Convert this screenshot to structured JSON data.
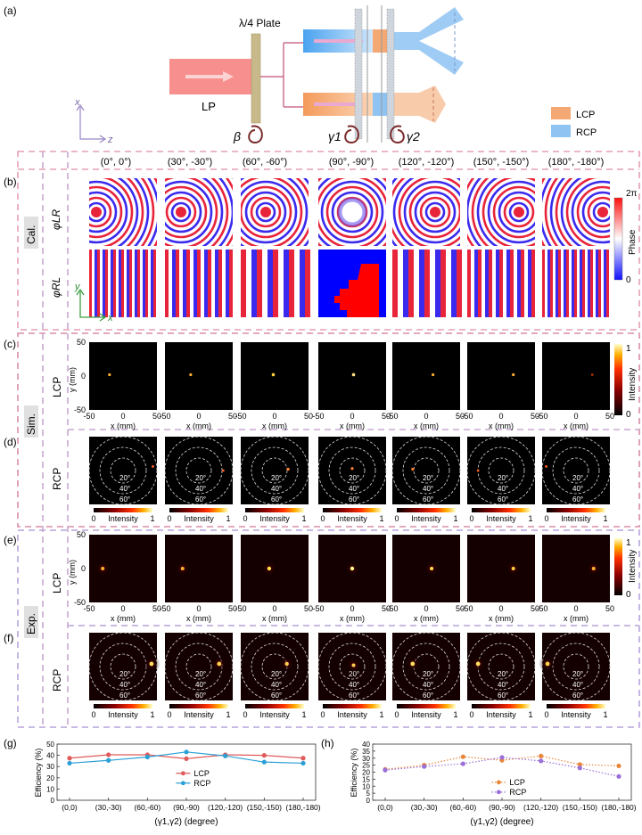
{
  "panel_labels": {
    "a": "(a)",
    "b": "(b)",
    "c": "(c)",
    "d": "(d)",
    "e": "(e)",
    "f": "(f)",
    "g": "(g)",
    "h": "(h)"
  },
  "setup": {
    "plate_label": "λ/4 Plate",
    "lp_label": "LP",
    "beta_label": "β",
    "gamma1_label": "γ1",
    "gamma2_label": "γ2",
    "axis_x": "x",
    "axis_z": "z",
    "legend": [
      {
        "label": "LCP",
        "color": "#f4a873"
      },
      {
        "label": "RCP",
        "color": "#8ec3f2"
      }
    ]
  },
  "angle_pairs": [
    "(0°, 0°)",
    "(30°, -30°)",
    "(60°, -60°)",
    "(90°, -90°)",
    "(120°, -120°)",
    "(150°, -150°)",
    "(180°, -180°)"
  ],
  "row_labels": {
    "phi_lr": "φLR",
    "phi_rl": "φRL",
    "lcp": "LCP",
    "rcp": "RCP"
  },
  "group_labels": {
    "cal": "Cal.",
    "sim": "Sim.",
    "exp": "Exp."
  },
  "phase_colorbar": {
    "title": "Phase",
    "top": "2π",
    "bottom": "0"
  },
  "intensity_colorbar": {
    "title": "Intensity",
    "top": "1",
    "bottom": "0",
    "low": "0",
    "high": "1"
  },
  "map_axes": {
    "xlabel": "x (mm)",
    "ylabel": "y (mm)",
    "ticks": [
      "-50",
      "0",
      "50"
    ],
    "axis_x": "x",
    "axis_y": "y"
  },
  "rings": [
    "20°",
    "40°",
    "60°"
  ],
  "chart_data": [
    {
      "type": "line",
      "xlabel": "(γ1,γ2) (degree)",
      "ylabel": "Efficiency (%)",
      "categories": [
        "(0,0)",
        "(30,-30)",
        "(60,-60)",
        "(90,-90)",
        "(120,-120)",
        "(150,-150)",
        "(180,-180)"
      ],
      "ylim": [
        0,
        50
      ],
      "yticks": [
        0,
        10,
        20,
        30,
        40,
        50
      ],
      "legend_position": "center",
      "series": [
        {
          "name": "LCP",
          "color": "#e05a5a",
          "style": "solid",
          "values": [
            37.5,
            40.5,
            40.5,
            37,
            40.5,
            40,
            37.5
          ]
        },
        {
          "name": "RCP",
          "color": "#2a9fd6",
          "style": "solid",
          "values": [
            33,
            35.5,
            38.5,
            43,
            39.5,
            34,
            33
          ]
        }
      ]
    },
    {
      "type": "line",
      "xlabel": "(γ1,γ2) (degree)",
      "ylabel": "Efficiency (%)",
      "categories": [
        "(0,0)",
        "(30,-30)",
        "(60,-60)",
        "(90,-90)",
        "(120,-120)",
        "(150,-150)",
        "(180,-180)"
      ],
      "ylim": [
        0,
        40
      ],
      "yticks": [
        0,
        5,
        10,
        15,
        20,
        25,
        30,
        35,
        40
      ],
      "legend_position": "bottom-center",
      "series": [
        {
          "name": "LCP",
          "color": "#e8873a",
          "style": "dotted",
          "values": [
            22,
            25,
            31,
            28.5,
            31.5,
            25.5,
            24.5
          ]
        },
        {
          "name": "RCP",
          "color": "#9b6fd8",
          "style": "dotted",
          "values": [
            21.5,
            24,
            26,
            30.5,
            28,
            23,
            17
          ]
        }
      ]
    }
  ]
}
